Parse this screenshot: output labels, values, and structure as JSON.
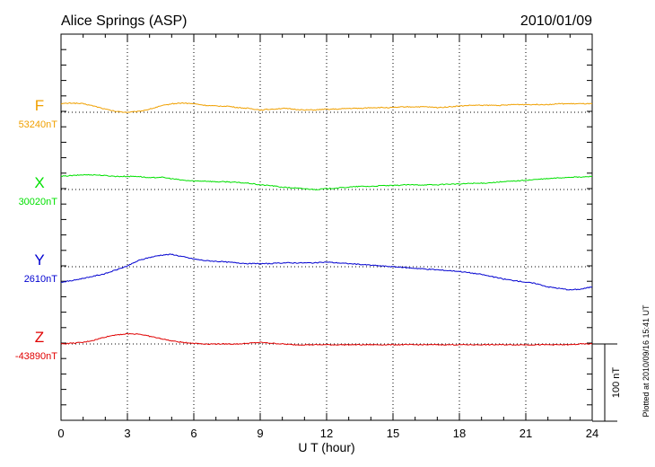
{
  "header": {
    "station": "Alice Springs (ASP)",
    "date": "2010/01/09"
  },
  "footer_note": "Plotted at 2010/09/16 15:41 UT",
  "chart_data": {
    "type": "line",
    "xlabel": "U T (hour)",
    "xlim": [
      0,
      24
    ],
    "x_ticks": [
      "0",
      "3",
      "6",
      "9",
      "12",
      "15",
      "18",
      "21",
      "24"
    ],
    "scale_bar": {
      "label": "100 nT",
      "value_nT": 100
    },
    "grid": "dotted",
    "units": "nT",
    "series": [
      {
        "name": "F",
        "baseline_label": "53240nT",
        "color": "#f0a000",
        "x": [
          0,
          0.5,
          1,
          1.5,
          2,
          2.5,
          3,
          3.5,
          4,
          4.5,
          5,
          5.5,
          6,
          6.5,
          7,
          7.5,
          8,
          8.5,
          9,
          9.5,
          10,
          10.5,
          11,
          11.5,
          12,
          12.5,
          13,
          13.5,
          14,
          14.5,
          15,
          15.5,
          16,
          16.5,
          17,
          17.5,
          18,
          18.5,
          19,
          19.5,
          20,
          20.5,
          21,
          21.5,
          22,
          22.5,
          23,
          23.5,
          24
        ],
        "values": [
          11,
          12,
          11,
          8,
          4,
          1,
          0,
          1,
          4,
          8,
          11,
          12,
          11,
          9,
          8,
          8,
          6,
          5,
          3,
          4,
          5,
          4,
          3,
          3,
          4,
          4,
          5,
          5,
          6,
          6,
          6,
          7,
          7,
          7,
          6,
          7,
          8,
          9,
          9,
          9,
          9,
          10,
          10,
          10,
          10,
          11,
          11,
          11,
          11
        ]
      },
      {
        "name": "X",
        "baseline_label": "30020nT",
        "color": "#00e000",
        "x": [
          0,
          0.5,
          1,
          1.5,
          2,
          2.5,
          3,
          3.5,
          4,
          4.5,
          5,
          5.5,
          6,
          6.5,
          7,
          7.5,
          8,
          8.5,
          9,
          9.5,
          10,
          10.5,
          11,
          11.5,
          12,
          12.5,
          13,
          13.5,
          14,
          14.5,
          15,
          15.5,
          16,
          16.5,
          17,
          17.5,
          18,
          18.5,
          19,
          19.5,
          20,
          20.5,
          21,
          21.5,
          22,
          22.5,
          23,
          23.5,
          24
        ],
        "values": [
          17,
          18,
          19,
          19,
          18,
          17,
          17,
          17,
          15,
          16,
          14,
          12,
          11,
          11,
          10,
          10,
          9,
          8,
          6,
          5,
          3,
          2,
          1,
          0,
          1,
          2,
          3,
          4,
          4,
          5,
          5,
          6,
          6,
          6,
          6,
          7,
          7,
          8,
          8,
          9,
          10,
          11,
          12,
          13,
          14,
          15,
          16,
          16,
          17
        ]
      },
      {
        "name": "Y",
        "baseline_label": "2610nT",
        "color": "#0000d0",
        "x": [
          0,
          0.5,
          1,
          1.5,
          2,
          2.5,
          3,
          3.5,
          4,
          4.5,
          5,
          5.5,
          6,
          6.5,
          7,
          7.5,
          8,
          8.5,
          9,
          9.5,
          10,
          10.5,
          11,
          11.5,
          12,
          12.5,
          13,
          13.5,
          14,
          14.5,
          15,
          15.5,
          16,
          16.5,
          17,
          17.5,
          18,
          18.5,
          19,
          19.5,
          20,
          20.5,
          21,
          21.5,
          22,
          22.5,
          23,
          23.5,
          24
        ],
        "values": [
          -20,
          -18,
          -15,
          -12,
          -9,
          -4,
          1,
          8,
          12,
          15,
          16,
          13,
          10,
          8,
          7,
          6,
          5,
          4,
          4,
          4,
          5,
          5,
          5,
          5,
          6,
          5,
          4,
          3,
          2,
          1,
          0,
          -1,
          -2,
          -3,
          -4,
          -5,
          -6,
          -8,
          -10,
          -13,
          -16,
          -18,
          -20,
          -22,
          -26,
          -28,
          -30,
          -29,
          -26
        ]
      },
      {
        "name": "Z",
        "baseline_label": "-43890nT",
        "color": "#e00000",
        "x": [
          0,
          0.5,
          1,
          1.5,
          2,
          2.5,
          3,
          3.5,
          4,
          4.5,
          5,
          5.5,
          6,
          6.5,
          7,
          7.5,
          8,
          8.5,
          9,
          9.5,
          10,
          10.5,
          11,
          11.5,
          12,
          12.5,
          13,
          13.5,
          14,
          14.5,
          15,
          15.5,
          16,
          16.5,
          17,
          17.5,
          18,
          18.5,
          19,
          19.5,
          20,
          20.5,
          21,
          21.5,
          22,
          22.5,
          23,
          23.5,
          24
        ],
        "values": [
          0,
          1,
          2,
          5,
          9,
          12,
          13,
          13,
          10,
          7,
          4,
          2,
          1,
          0,
          0,
          0,
          0,
          1,
          2,
          1,
          0,
          -1,
          -1,
          -1,
          -1,
          -1,
          -1,
          -1,
          -1,
          -1,
          -1,
          -1,
          -1,
          -1,
          -1,
          -1,
          -1,
          -1,
          -1,
          -1,
          -1,
          -1,
          -1,
          -1,
          -1,
          -1,
          -1,
          0,
          0
        ]
      }
    ]
  }
}
